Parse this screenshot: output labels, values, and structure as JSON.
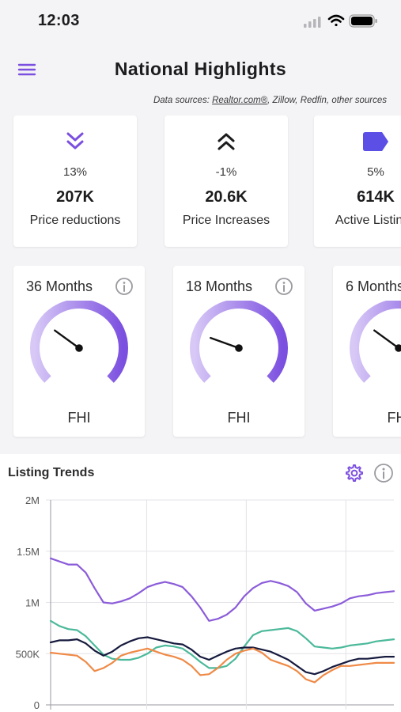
{
  "status": {
    "time": "12:03"
  },
  "header": {
    "title": "National Highlights"
  },
  "sources": {
    "prefix": "Data sources: ",
    "link": "Realtor.com®",
    "suffix": ", Zillow, Redfin, other sources"
  },
  "stats": [
    {
      "icon": "double-chevron-down-icon",
      "percent": "13%",
      "value": "207K",
      "label": "Price reductions"
    },
    {
      "icon": "double-chevron-up-icon",
      "percent": "-1%",
      "value": "20.6K",
      "label": "Price Increases"
    },
    {
      "icon": "tag-icon",
      "percent": "5%",
      "value": "614K",
      "label": "Active Listings"
    }
  ],
  "gauges": [
    {
      "title": "36 Months",
      "label": "FHI",
      "level": 0.3
    },
    {
      "title": "18 Months",
      "label": "FHI",
      "level": 0.24
    },
    {
      "title": "6 Months",
      "label": "FHI",
      "level": 0.3
    }
  ],
  "colors": {
    "accent": "#7b4fe0",
    "series_purple": "#8b5cd9",
    "series_teal": "#4bb99a",
    "series_navy": "#161a3d",
    "series_orange": "#ef8a47"
  },
  "trends": {
    "title": "Listing Trends"
  },
  "chart_data": {
    "type": "line",
    "title": "Listing Trends",
    "xlabel": "",
    "ylabel": "",
    "ylim": [
      0,
      2000000
    ],
    "yticks": [
      "0",
      "500K",
      "1M",
      "1.5M",
      "2M"
    ],
    "ytick_values": [
      0,
      500000,
      1000000,
      1500000,
      2000000
    ],
    "grid": true,
    "x": [
      0,
      1,
      2,
      3,
      4,
      5,
      6,
      7,
      8,
      9,
      10,
      11,
      12,
      13,
      14,
      15,
      16,
      17,
      18,
      19,
      20,
      21,
      22,
      23,
      24,
      25,
      26,
      27,
      28,
      29,
      30,
      31,
      32,
      33,
      34,
      35,
      36,
      37,
      38,
      39
    ],
    "series": [
      {
        "color": "#8b5cd9",
        "values": [
          1430000,
          1400000,
          1370000,
          1370000,
          1290000,
          1140000,
          1000000,
          990000,
          1010000,
          1040000,
          1090000,
          1150000,
          1180000,
          1200000,
          1180000,
          1150000,
          1060000,
          950000,
          820000,
          840000,
          880000,
          950000,
          1060000,
          1140000,
          1190000,
          1210000,
          1190000,
          1160000,
          1100000,
          990000,
          920000,
          940000,
          960000,
          990000,
          1040000,
          1060000,
          1070000,
          1090000,
          1100000,
          1110000
        ]
      },
      {
        "color": "#4bb99a",
        "values": [
          820000,
          770000,
          740000,
          730000,
          670000,
          580000,
          490000,
          450000,
          440000,
          440000,
          460000,
          500000,
          560000,
          580000,
          570000,
          550000,
          490000,
          420000,
          360000,
          360000,
          380000,
          450000,
          570000,
          680000,
          720000,
          730000,
          740000,
          750000,
          720000,
          650000,
          570000,
          560000,
          550000,
          560000,
          580000,
          590000,
          600000,
          620000,
          630000,
          640000
        ]
      },
      {
        "color": "#161a3d",
        "values": [
          610000,
          630000,
          630000,
          640000,
          600000,
          530000,
          480000,
          520000,
          580000,
          620000,
          650000,
          660000,
          640000,
          620000,
          600000,
          590000,
          540000,
          470000,
          440000,
          480000,
          520000,
          550000,
          560000,
          560000,
          540000,
          520000,
          480000,
          440000,
          380000,
          320000,
          300000,
          330000,
          370000,
          400000,
          430000,
          450000,
          450000,
          460000,
          470000,
          470000
        ]
      },
      {
        "color": "#ef8a47",
        "values": [
          510000,
          500000,
          490000,
          480000,
          420000,
          330000,
          360000,
          410000,
          480000,
          510000,
          530000,
          550000,
          520000,
          490000,
          470000,
          440000,
          380000,
          290000,
          300000,
          360000,
          440000,
          500000,
          530000,
          550000,
          510000,
          440000,
          410000,
          380000,
          330000,
          250000,
          220000,
          290000,
          340000,
          380000,
          380000,
          390000,
          400000,
          410000,
          410000,
          410000
        ]
      }
    ]
  }
}
